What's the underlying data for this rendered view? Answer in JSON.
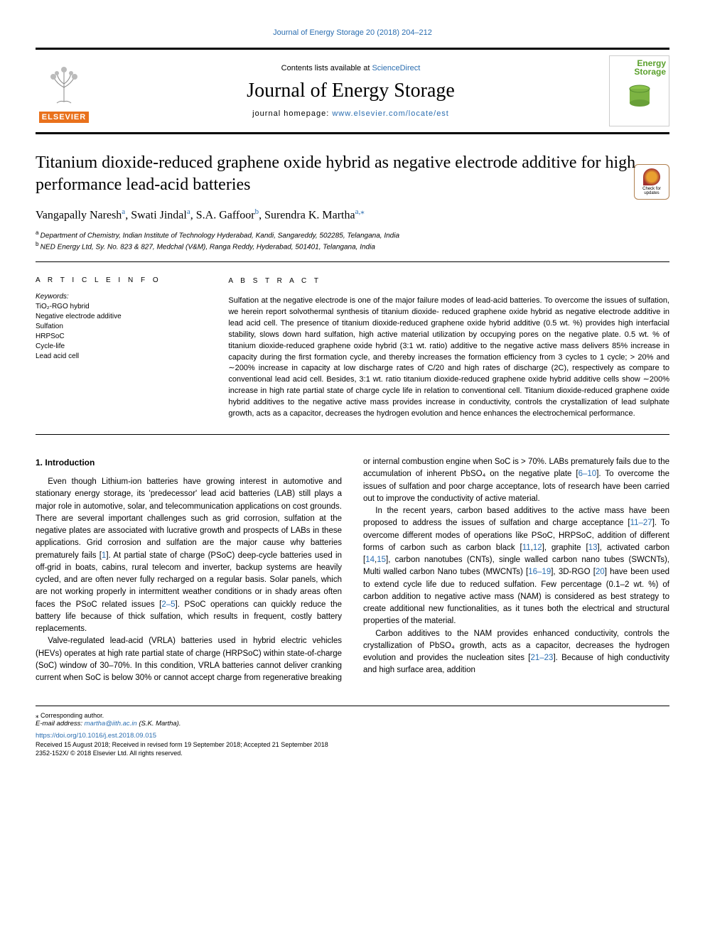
{
  "header": {
    "citation_link": "Journal of Energy Storage 20 (2018) 204–212",
    "contents_prefix": "Contents lists available at ",
    "contents_link": "ScienceDirect",
    "journal_name": "Journal of Energy Storage",
    "home_prefix": "journal homepage: ",
    "home_link": "www.elsevier.com/locate/est",
    "elsevier_brand": "ELSEVIER",
    "cover_title_1": "Energy",
    "cover_title_2": "Storage",
    "check_updates": "Check for updates"
  },
  "article": {
    "title": "Titanium dioxide-reduced graphene oxide hybrid as negative electrode additive for high performance lead-acid batteries",
    "authors_html": "Vangapally Naresh",
    "authors": [
      {
        "name": "Vangapally Naresh",
        "aff": "a"
      },
      {
        "name": "Swati Jindal",
        "aff": "a"
      },
      {
        "name": "S.A. Gaffoor",
        "aff": "b"
      },
      {
        "name": "Surendra K. Martha",
        "aff": "a,",
        "corr": true
      }
    ],
    "affiliations": [
      {
        "key": "a",
        "text": "Department of Chemistry, Indian Institute of Technology Hyderabad, Kandi, Sangareddy, 502285, Telangana, India"
      },
      {
        "key": "b",
        "text": "NED Energy Ltd, Sy. No. 823 & 827, Medchal (V&M), Ranga Reddy, Hyderabad, 501401, Telangana, India"
      }
    ]
  },
  "info": {
    "heading": "A R T I C L E  I N F O",
    "kw_label": "Keywords:",
    "keywords": [
      "TiO₂-RGO hybrid",
      "Negative electrode additive",
      "Sulfation",
      "HRPSoC",
      "Cycle-life",
      "Lead acid cell"
    ]
  },
  "abstract": {
    "heading": "A B S T R A C T",
    "text": "Sulfation at the negative electrode is one of the major failure modes of lead-acid batteries. To overcome the issues of sulfation, we herein report solvothermal synthesis of titanium dioxide- reduced graphene oxide hybrid as negative electrode additive in lead acid cell. The presence of titanium dioxide-reduced graphene oxide hybrid additive (0.5 wt. %) provides high interfacial stability, slows down hard sulfation, high active material utilization by occupying pores on the negative plate. 0.5 wt. % of titanium dioxide-reduced graphene oxide hybrid (3:1 wt. ratio) additive to the negative active mass delivers 85% increase in capacity during the first formation cycle, and thereby increases the formation efficiency from 3 cycles to 1 cycle; > 20% and ∼200% increase in capacity at low discharge rates of C/20 and high rates of discharge (2C), respectively as compare to conventional lead acid cell. Besides, 3:1 wt. ratio titanium dioxide-reduced graphene oxide hybrid additive cells show ∼200% increase in high rate partial state of charge cycle life in relation to conventional cell. Titanium dioxide-reduced graphene oxide hybrid additives to the negative active mass provides increase in conductivity, controls the crystallization of lead sulphate growth, acts as a capacitor, decreases the hydrogen evolution and hence enhances the electrochemical performance."
  },
  "body": {
    "section_num": "1.",
    "section_title": "Introduction",
    "p1": "Even though Lithium-ion batteries have growing interest in automotive and stationary energy storage, its 'predecessor' lead acid batteries (LAB) still plays a major role in automotive, solar, and telecommunication applications on cost grounds. There are several important challenges such as grid corrosion, sulfation at the negative plates are associated with lucrative growth and prospects of LABs in these applications. Grid corrosion and sulfation are the major cause why batteries prematurely fails [",
    "ref1": "1",
    "p1b": "]. At partial state of charge (PSoC) deep-cycle batteries used in off-grid in boats, cabins, rural telecom and inverter, backup systems are heavily cycled, and are often never fully recharged on a regular basis. Solar panels, which are not working properly in intermittent weather conditions or in shady areas often faces the PSoC related issues [",
    "ref2": "2–5",
    "p1c": "]. PSoC operations can quickly reduce the battery life because of thick sulfation, which results in frequent, costly battery replacements.",
    "p2": "Valve-regulated lead-acid (VRLA) batteries used in hybrid electric vehicles (HEVs) operates at high rate partial state of charge (HRPSoC) within state-of-charge (SoC) window of 30–70%. In this condition, VRLA batteries cannot deliver cranking current when SoC is below 30%",
    "p3a": "or cannot accept charge from regenerative breaking or internal combustion engine when SoC is > 70%. LABs prematurely fails due to the accumulation of inherent PbSO₄ on the negative plate [",
    "ref3": "6–10",
    "p3b": "]. To overcome the issues of sulfation and poor charge acceptance, lots of research have been carried out to improve the conductivity of active material.",
    "p4a": "In the recent years, carbon based additives to the active mass have been proposed to address the issues of sulfation and charge acceptance [",
    "ref4": "11–27",
    "p4b": "]. To overcome different modes of operations like PSoC, HRPSoC, addition of different forms of carbon such as carbon black [",
    "ref5": "11",
    "p4c": ",",
    "ref6": "12",
    "p4d": "], graphite [",
    "ref7": "13",
    "p4e": "], activated carbon [",
    "ref8": "14",
    "p4f": ",",
    "ref9": "15",
    "p4g": "], carbon nanotubes (CNTs), single walled carbon nano tubes (SWCNTs), Multi walled carbon Nano tubes (MWCNTs) [",
    "ref10": "16–19",
    "p4h": "], 3D-RGO [",
    "ref11": "20",
    "p4i": "] have been used to extend cycle life due to reduced sulfation. Few percentage (0.1–2 wt. %) of carbon addition to negative active mass (NAM) is considered as best strategy to create additional new functionalities, as it tunes both the electrical and structural properties of the material.",
    "p5a": "Carbon additives to the NAM provides enhanced conductivity, controls the crystallization of PbSO₄ growth, acts as a capacitor, decreases the hydrogen evolution and provides the nucleation sites [",
    "ref12": "21–23",
    "p5b": "]. Because of high conductivity and high surface area, addition"
  },
  "footer": {
    "corr_mark": "⁎",
    "corr_text": "Corresponding author.",
    "email_label": "E-mail address:",
    "email": "martha@iith.ac.in",
    "email_suffix": "(S.K. Martha).",
    "doi": "https://doi.org/10.1016/j.est.2018.09.015",
    "received": "Received 15 August 2018; Received in revised form 19 September 2018; Accepted 21 September 2018",
    "issn": "2352-152X/ © 2018 Elsevier Ltd. All rights reserved."
  },
  "colors": {
    "link": "#2a6db0",
    "elsevier": "#e9711c",
    "cover_green": "#5aa02c"
  }
}
